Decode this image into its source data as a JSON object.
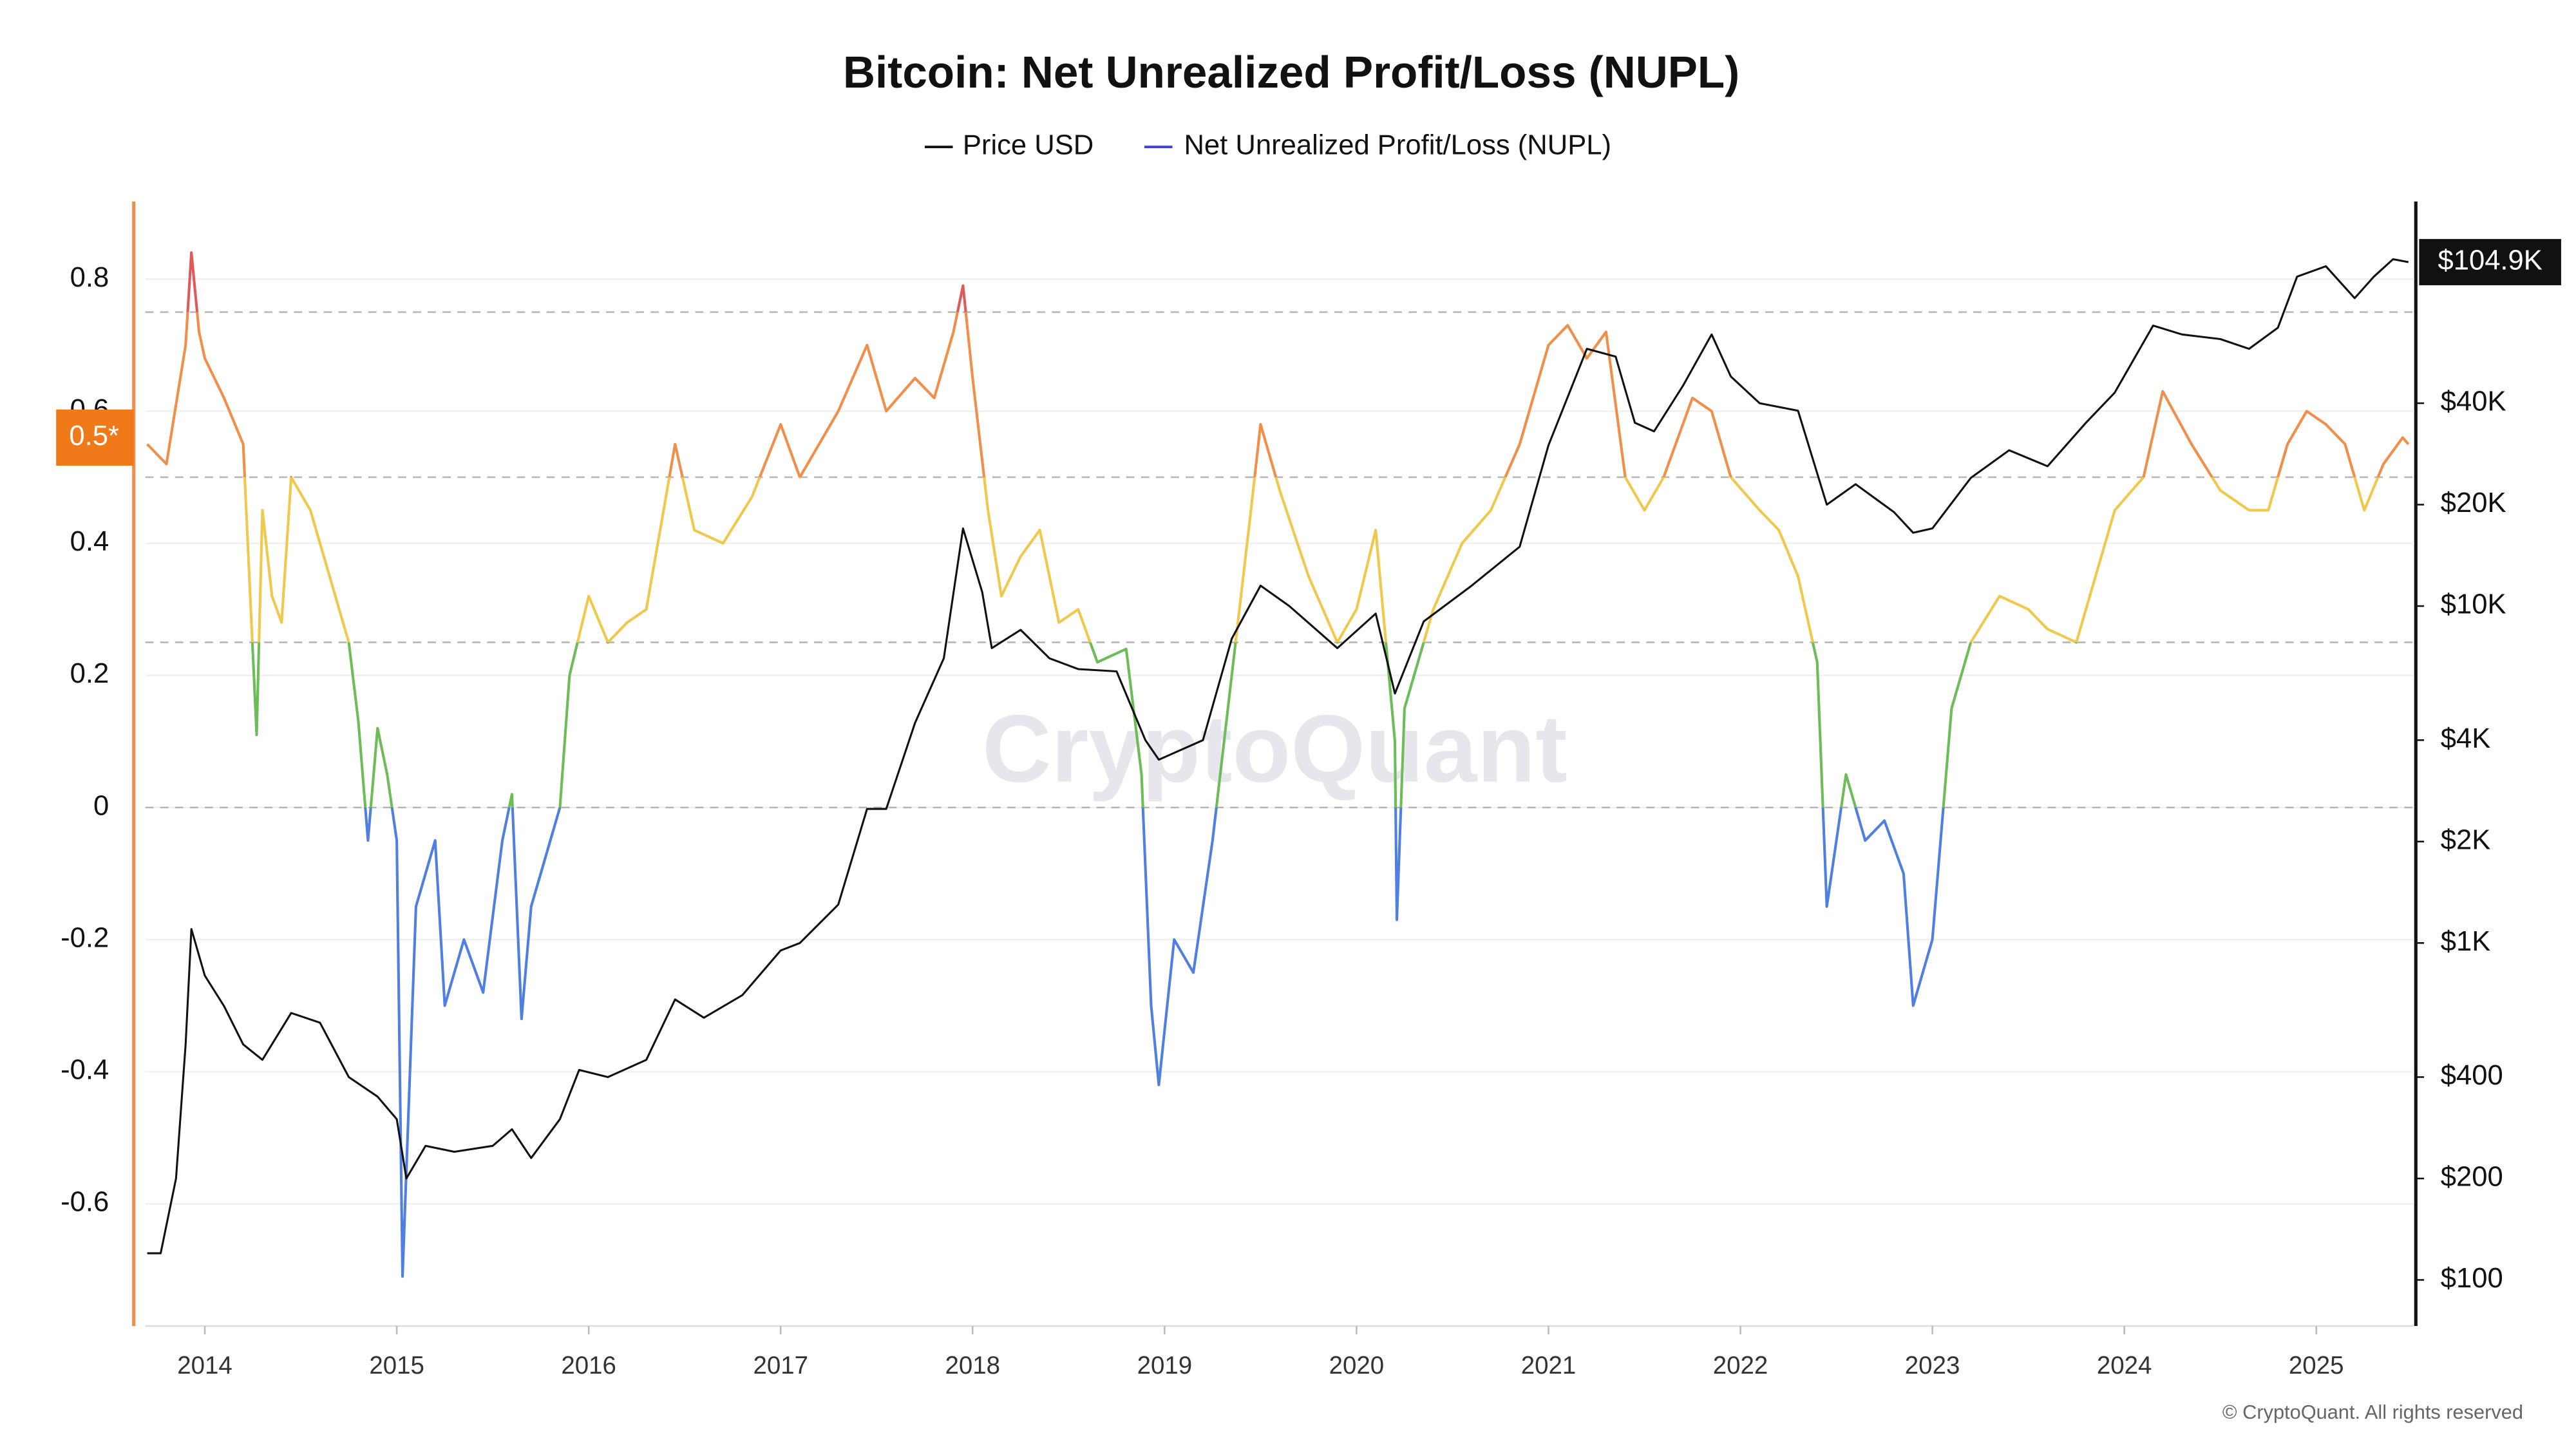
{
  "chart_data": {
    "type": "line",
    "title": "Bitcoin: Net Unrealized Profit/Loss (NUPL)",
    "watermark": "CryptoQuant",
    "copyright": "© CryptoQuant. All rights reserved",
    "cursor_label": "0.5*",
    "xlim": [
      2013.69,
      2025.51
    ],
    "xticks": [
      2014,
      2015,
      2016,
      2017,
      2018,
      2019,
      2020,
      2021,
      2022,
      2023,
      2024,
      2025
    ],
    "ylim": [
      -0.785,
      0.9175
    ],
    "yticks": [
      -0.6,
      -0.4,
      -0.2,
      0,
      0.2,
      0.4,
      0.6,
      0.8
    ],
    "y2lim": [
      73,
      158800
    ],
    "y2scale": "log",
    "y2ticks": [
      {
        "value": 100,
        "label": "$100"
      },
      {
        "value": 200,
        "label": "$200"
      },
      {
        "value": 400,
        "label": "$400"
      },
      {
        "value": 1000,
        "label": "$1K"
      },
      {
        "value": 2000,
        "label": "$2K"
      },
      {
        "value": 4000,
        "label": "$4K"
      },
      {
        "value": 10000,
        "label": "$10K"
      },
      {
        "value": 20000,
        "label": "$20K"
      },
      {
        "value": 40000,
        "label": "$40K"
      }
    ],
    "grid": true,
    "reference_lines": [
      0,
      0.25,
      0.5,
      0.75
    ],
    "last_price": {
      "value": 104900,
      "label": "$104.9K"
    },
    "zones": [
      {
        "from": 0.75,
        "to": 0.9175,
        "color": "#e05a5a"
      },
      {
        "from": 0.5,
        "to": 0.75,
        "color": "#f08e4a"
      },
      {
        "from": 0.25,
        "to": 0.5,
        "color": "#f0c84c"
      },
      {
        "from": 0,
        "to": 0.25,
        "color": "#6cbd58"
      },
      {
        "from": -0.785,
        "to": 0,
        "color": "#4f7fe0"
      }
    ],
    "series": [
      {
        "name": "Price USD",
        "color": "#111111",
        "axis": "y2",
        "x": [
          2013.7,
          2013.77,
          2013.85,
          2013.9,
          2013.93,
          2014.0,
          2014.1,
          2014.2,
          2014.3,
          2014.45,
          2014.6,
          2014.75,
          2014.9,
          2015.0,
          2015.05,
          2015.15,
          2015.3,
          2015.5,
          2015.6,
          2015.7,
          2015.85,
          2015.95,
          2016.1,
          2016.3,
          2016.45,
          2016.6,
          2016.8,
          2017.0,
          2017.1,
          2017.3,
          2017.45,
          2017.55,
          2017.7,
          2017.85,
          2017.95,
          2018.05,
          2018.1,
          2018.25,
          2018.4,
          2018.55,
          2018.75,
          2018.9,
          2018.97,
          2019.2,
          2019.35,
          2019.5,
          2019.65,
          2019.9,
          2020.1,
          2020.2,
          2020.35,
          2020.6,
          2020.85,
          2021.0,
          2021.2,
          2021.35,
          2021.45,
          2021.55,
          2021.7,
          2021.85,
          2021.95,
          2022.1,
          2022.3,
          2022.45,
          2022.6,
          2022.8,
          2022.9,
          2023.0,
          2023.2,
          2023.4,
          2023.6,
          2023.8,
          2023.95,
          2024.15,
          2024.3,
          2024.5,
          2024.65,
          2024.8,
          2024.9,
          2025.05,
          2025.2,
          2025.3,
          2025.4,
          2025.48
        ],
        "values": [
          120,
          120,
          200,
          500,
          1100,
          800,
          650,
          500,
          450,
          620,
          580,
          400,
          350,
          300,
          200,
          250,
          240,
          250,
          280,
          230,
          300,
          420,
          400,
          450,
          680,
          600,
          700,
          950,
          1000,
          1300,
          2500,
          2500,
          4500,
          7000,
          17000,
          11000,
          7500,
          8500,
          7000,
          6500,
          6400,
          4000,
          3500,
          4000,
          8000,
          11500,
          10000,
          7500,
          9500,
          5500,
          9000,
          11500,
          15000,
          30000,
          58000,
          55000,
          35000,
          33000,
          45000,
          64000,
          48000,
          40000,
          38000,
          20000,
          23000,
          19000,
          16500,
          17000,
          24000,
          29000,
          26000,
          35000,
          43000,
          68000,
          64000,
          62000,
          58000,
          67000,
          95000,
          102000,
          82000,
          95000,
          107000,
          104900
        ]
      },
      {
        "name": "Net Unrealized Profit/Loss (NUPL)",
        "color": "#3b3fd6",
        "x": [
          2013.7,
          2013.8,
          2013.9,
          2013.93,
          2013.97,
          2014.0,
          2014.1,
          2014.2,
          2014.27,
          2014.3,
          2014.35,
          2014.4,
          2014.45,
          2014.55,
          2014.65,
          2014.75,
          2014.8,
          2014.85,
          2014.9,
          2014.95,
          2015.0,
          2015.03,
          2015.1,
          2015.2,
          2015.25,
          2015.35,
          2015.45,
          2015.55,
          2015.6,
          2015.65,
          2015.7,
          2015.8,
          2015.85,
          2015.9,
          2016.0,
          2016.1,
          2016.2,
          2016.3,
          2016.45,
          2016.55,
          2016.7,
          2016.85,
          2017.0,
          2017.1,
          2017.3,
          2017.45,
          2017.55,
          2017.7,
          2017.8,
          2017.9,
          2017.95,
          2018.0,
          2018.08,
          2018.15,
          2018.25,
          2018.35,
          2018.45,
          2018.55,
          2018.65,
          2018.8,
          2018.88,
          2018.93,
          2018.97,
          2019.05,
          2019.15,
          2019.25,
          2019.35,
          2019.45,
          2019.5,
          2019.6,
          2019.75,
          2019.9,
          2020.0,
          2020.1,
          2020.2,
          2020.21,
          2020.25,
          2020.4,
          2020.55,
          2020.7,
          2020.85,
          2021.0,
          2021.1,
          2021.2,
          2021.3,
          2021.4,
          2021.5,
          2021.6,
          2021.75,
          2021.85,
          2021.95,
          2022.1,
          2022.2,
          2022.3,
          2022.4,
          2022.45,
          2022.55,
          2022.65,
          2022.75,
          2022.85,
          2022.9,
          2023.0,
          2023.1,
          2023.2,
          2023.35,
          2023.5,
          2023.6,
          2023.75,
          2023.85,
          2023.95,
          2024.1,
          2024.2,
          2024.35,
          2024.5,
          2024.65,
          2024.75,
          2024.85,
          2024.95,
          2025.05,
          2025.15,
          2025.25,
          2025.35,
          2025.45,
          2025.48
        ],
        "values": [
          0.55,
          0.52,
          0.7,
          0.84,
          0.72,
          0.68,
          0.62,
          0.55,
          0.11,
          0.45,
          0.32,
          0.28,
          0.5,
          0.45,
          0.35,
          0.25,
          0.13,
          -0.05,
          0.12,
          0.05,
          -0.05,
          -0.71,
          -0.15,
          -0.05,
          -0.3,
          -0.2,
          -0.28,
          -0.05,
          0.02,
          -0.32,
          -0.15,
          -0.05,
          0.0,
          0.2,
          0.32,
          0.25,
          0.28,
          0.3,
          0.55,
          0.42,
          0.4,
          0.47,
          0.58,
          0.5,
          0.6,
          0.7,
          0.6,
          0.65,
          0.62,
          0.72,
          0.79,
          0.65,
          0.45,
          0.32,
          0.38,
          0.42,
          0.28,
          0.3,
          0.22,
          0.24,
          0.05,
          -0.3,
          -0.42,
          -0.2,
          -0.25,
          -0.05,
          0.2,
          0.45,
          0.58,
          0.48,
          0.35,
          0.25,
          0.3,
          0.42,
          0.1,
          -0.17,
          0.15,
          0.3,
          0.4,
          0.45,
          0.55,
          0.7,
          0.73,
          0.68,
          0.72,
          0.5,
          0.45,
          0.5,
          0.62,
          0.6,
          0.5,
          0.45,
          0.42,
          0.35,
          0.22,
          -0.15,
          0.05,
          -0.05,
          -0.02,
          -0.1,
          -0.3,
          -0.2,
          0.15,
          0.25,
          0.32,
          0.3,
          0.27,
          0.25,
          0.35,
          0.45,
          0.5,
          0.63,
          0.55,
          0.48,
          0.45,
          0.45,
          0.55,
          0.6,
          0.58,
          0.55,
          0.45,
          0.52,
          0.56,
          0.55
        ]
      }
    ]
  }
}
